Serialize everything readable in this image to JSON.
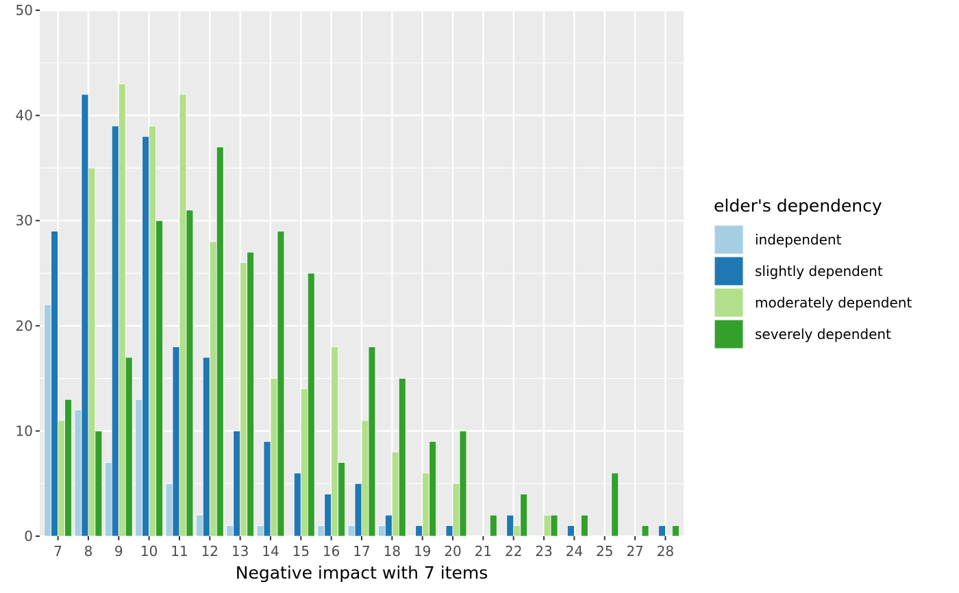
{
  "chart_data": {
    "type": "bar",
    "title": "",
    "xlabel": "Negative impact with 7 items",
    "ylabel": "",
    "ylim": [
      0,
      50
    ],
    "yticks": [
      0,
      10,
      20,
      30,
      40,
      50
    ],
    "grid": true,
    "categories": [
      "7",
      "8",
      "9",
      "10",
      "11",
      "12",
      "13",
      "14",
      "15",
      "16",
      "17",
      "18",
      "19",
      "20",
      "21",
      "22",
      "23",
      "24",
      "25",
      "27",
      "28"
    ],
    "legend": {
      "title": "elder's dependency",
      "position": "right"
    },
    "series": [
      {
        "name": "independent",
        "color": "#A6CEE3",
        "values": [
          22,
          12,
          7,
          13,
          5,
          2,
          1,
          1,
          0,
          1,
          1,
          1,
          0,
          0,
          0,
          0,
          0,
          0,
          0,
          0,
          0
        ]
      },
      {
        "name": "slightly dependent",
        "color": "#1F78B4",
        "values": [
          29,
          42,
          39,
          38,
          18,
          17,
          10,
          9,
          6,
          4,
          5,
          2,
          1,
          1,
          0,
          2,
          0,
          1,
          0,
          0,
          1
        ]
      },
      {
        "name": "moderately dependent",
        "color": "#B2DF8A",
        "values": [
          11,
          35,
          43,
          39,
          42,
          28,
          26,
          15,
          14,
          18,
          11,
          8,
          6,
          5,
          0,
          1,
          2,
          0,
          0,
          0,
          0
        ]
      },
      {
        "name": "severely dependent",
        "color": "#33A02C",
        "values": [
          13,
          10,
          17,
          30,
          31,
          37,
          27,
          29,
          25,
          7,
          18,
          15,
          9,
          10,
          2,
          4,
          2,
          2,
          6,
          1,
          1
        ]
      }
    ]
  }
}
